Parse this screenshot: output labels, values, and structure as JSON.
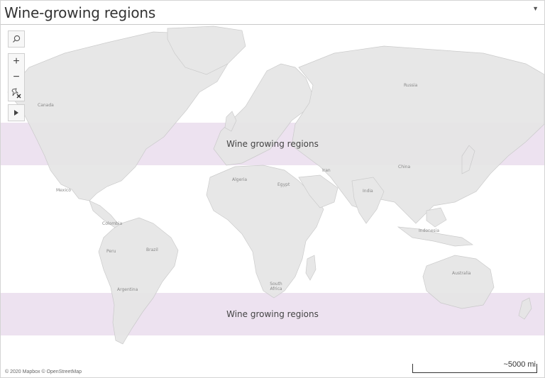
{
  "title": "Wine-growing regions",
  "dropdown_icon": "caret-down-icon",
  "controls": {
    "search_icon": "search-icon",
    "zoom_in": "+",
    "zoom_out": "−",
    "pin_reset_icon": "pin-reset-icon",
    "expand_icon": "play-icon"
  },
  "bands": [
    {
      "label": "Wine growing regions",
      "latitude_range_north": [
        30,
        50
      ],
      "color": "#ede2f0"
    },
    {
      "label": "Wine growing regions",
      "latitude_range_south": [
        -30,
        -50
      ],
      "color": "#ede2f0"
    }
  ],
  "country_labels": [
    {
      "name": "Russia"
    },
    {
      "name": "Canada"
    },
    {
      "name": "Mexico"
    },
    {
      "name": "Algeria"
    },
    {
      "name": "Egypt"
    },
    {
      "name": "Iran"
    },
    {
      "name": "China"
    },
    {
      "name": "India"
    },
    {
      "name": "Colombia"
    },
    {
      "name": "Peru"
    },
    {
      "name": "Brazil"
    },
    {
      "name": "Indonesia"
    },
    {
      "name": "Australia"
    },
    {
      "name": "Argentina"
    },
    {
      "name": "South Africa"
    }
  ],
  "attribution": "© 2020 Mapbox © OpenStreetMap",
  "scale_label": "~5000 mi",
  "colors": {
    "land": "#e8e8e8",
    "water": "#ffffff",
    "band": "#ede2f0"
  }
}
